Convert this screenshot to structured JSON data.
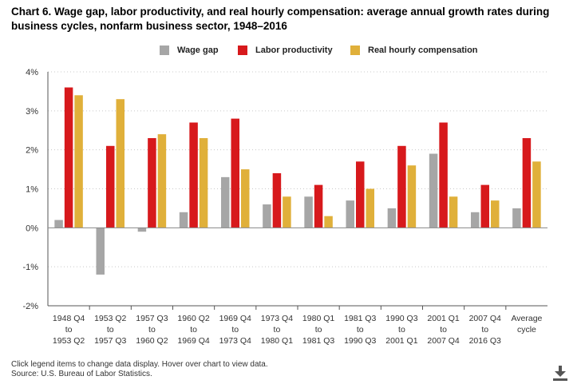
{
  "title": "Chart 6. Wage gap, labor productivity, and real hourly compensation: average annual growth rates during business cycles, nonfarm business sector, 1948–2016",
  "footnote": {
    "line1": "Click legend items to change data display. Hover over chart to view data.",
    "line2": "Source: U.S. Bureau of Labor Statistics."
  },
  "download_icon": "download-icon",
  "chart_data": {
    "type": "bar",
    "title": "Chart 6. Wage gap, labor productivity, and real hourly compensation: average annual growth rates during business cycles, nonfarm business sector, 1948–2016",
    "xlabel": "",
    "ylabel": "",
    "ylim": [
      -2,
      4
    ],
    "yticks": [
      4,
      3,
      2,
      1,
      0,
      -1,
      -2
    ],
    "ytick_labels": [
      "4%",
      "3%",
      "2%",
      "1%",
      "0%",
      "-1%",
      "-2%"
    ],
    "grid": true,
    "legend_position": "top",
    "categories": [
      [
        "1948 Q4",
        "to",
        "1953 Q2"
      ],
      [
        "1953 Q2",
        "to",
        "1957 Q3"
      ],
      [
        "1957 Q3",
        "to",
        "1960 Q2"
      ],
      [
        "1960 Q2",
        "to",
        "1969 Q4"
      ],
      [
        "1969 Q4",
        "to",
        "1973 Q4"
      ],
      [
        "1973 Q4",
        "to",
        "1980 Q1"
      ],
      [
        "1980 Q1",
        "to",
        "1981 Q3"
      ],
      [
        "1981 Q3",
        "to",
        "1990 Q3"
      ],
      [
        "1990 Q3",
        "to",
        "2001 Q1"
      ],
      [
        "2001 Q1",
        "to",
        "2007 Q4"
      ],
      [
        "2007 Q4",
        "to",
        "2016 Q3"
      ],
      [
        "Average",
        "cycle"
      ]
    ],
    "series": [
      {
        "name": "Wage gap",
        "color": "#a6a6a6",
        "values": [
          0.2,
          -1.2,
          -0.1,
          0.4,
          1.3,
          0.6,
          0.8,
          0.7,
          0.5,
          1.9,
          0.4,
          0.5
        ]
      },
      {
        "name": "Labor productivity",
        "color": "#d7191c",
        "values": [
          3.6,
          2.1,
          2.3,
          2.7,
          2.8,
          1.4,
          1.1,
          1.7,
          2.1,
          2.7,
          1.1,
          2.3
        ]
      },
      {
        "name": "Real hourly compensation",
        "color": "#e0b03a",
        "values": [
          3.4,
          3.3,
          2.4,
          2.3,
          1.5,
          0.8,
          0.3,
          1.0,
          1.6,
          0.8,
          0.7,
          1.7
        ]
      }
    ]
  }
}
